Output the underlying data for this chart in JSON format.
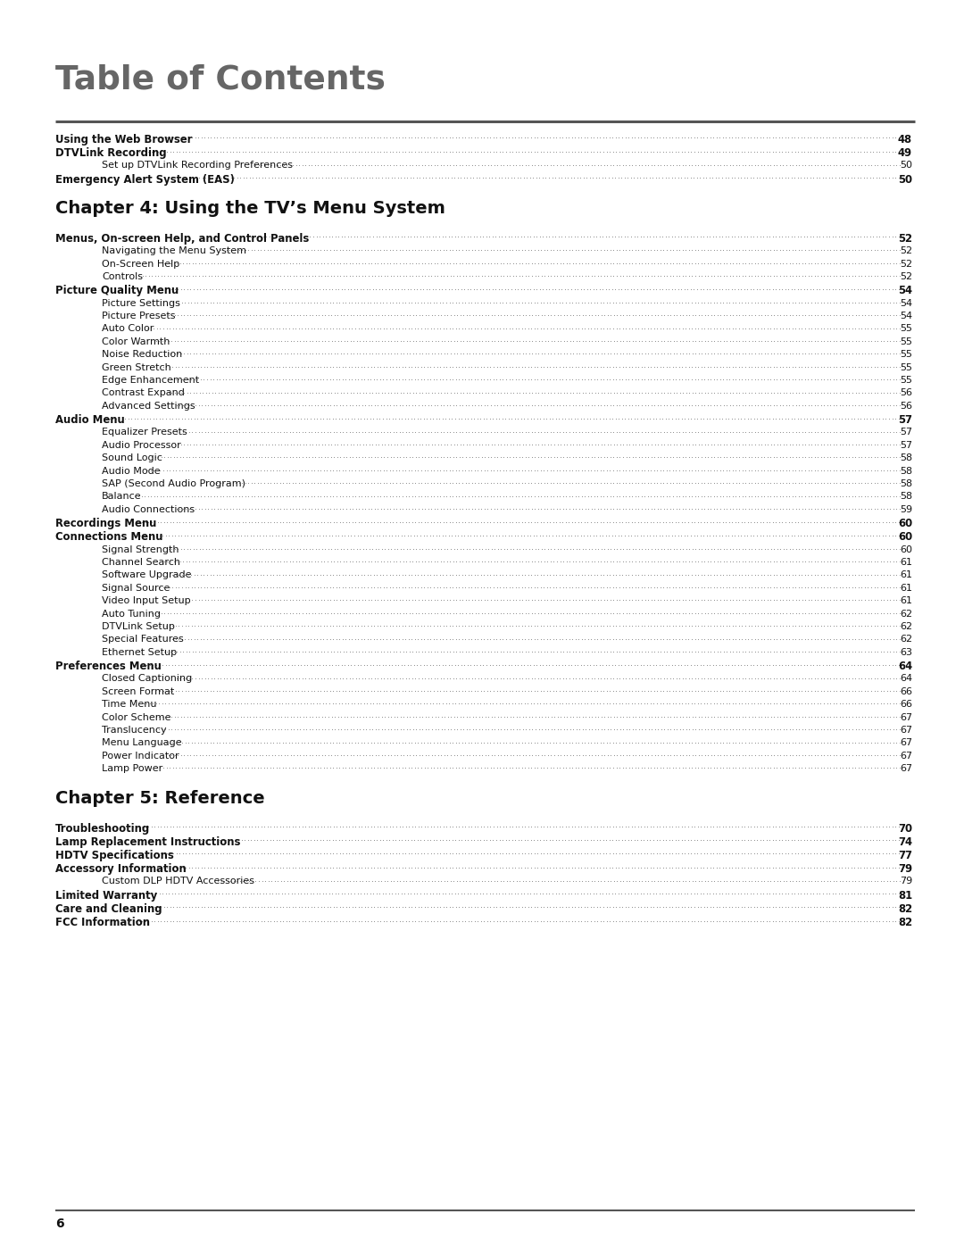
{
  "title": "Table of Contents",
  "background_color": "#ffffff",
  "footer_text": "6",
  "title_color": "#666666",
  "rule_color": "#555555",
  "text_color": "#111111",
  "chapter_color": "#111111",
  "entries": [
    {
      "text": "Using the Web Browser",
      "page": "48",
      "level": 1,
      "bold": true,
      "chapter": false
    },
    {
      "text": "DTVLink Recording",
      "page": "49",
      "level": 1,
      "bold": true,
      "chapter": false
    },
    {
      "text": "Set up DTVLink Recording Preferences",
      "page": "50",
      "level": 2,
      "bold": false,
      "chapter": false
    },
    {
      "text": "Emergency Alert System (EAS)",
      "page": "50",
      "level": 1,
      "bold": true,
      "chapter": false
    },
    {
      "text": "Chapter 4: Using the TV’s Menu System",
      "page": "",
      "level": 0,
      "bold": true,
      "chapter": true
    },
    {
      "text": "Menus, On-screen Help, and Control Panels",
      "page": "52",
      "level": 1,
      "bold": true,
      "chapter": false
    },
    {
      "text": "Navigating the Menu System",
      "page": "52",
      "level": 2,
      "bold": false,
      "chapter": false
    },
    {
      "text": "On-Screen Help",
      "page": "52",
      "level": 2,
      "bold": false,
      "chapter": false
    },
    {
      "text": "Controls",
      "page": "52",
      "level": 2,
      "bold": false,
      "chapter": false
    },
    {
      "text": "Picture Quality Menu",
      "page": "54",
      "level": 1,
      "bold": true,
      "chapter": false
    },
    {
      "text": "Picture Settings",
      "page": "54",
      "level": 2,
      "bold": false,
      "chapter": false
    },
    {
      "text": "Picture Presets",
      "page": "54",
      "level": 2,
      "bold": false,
      "chapter": false
    },
    {
      "text": "Auto Color",
      "page": "55",
      "level": 2,
      "bold": false,
      "chapter": false
    },
    {
      "text": "Color Warmth",
      "page": "55",
      "level": 2,
      "bold": false,
      "chapter": false
    },
    {
      "text": "Noise Reduction",
      "page": "55",
      "level": 2,
      "bold": false,
      "chapter": false
    },
    {
      "text": "Green Stretch",
      "page": "55",
      "level": 2,
      "bold": false,
      "chapter": false
    },
    {
      "text": "Edge Enhancement",
      "page": "55",
      "level": 2,
      "bold": false,
      "chapter": false
    },
    {
      "text": "Contrast Expand",
      "page": "56",
      "level": 2,
      "bold": false,
      "chapter": false
    },
    {
      "text": "Advanced Settings",
      "page": "56",
      "level": 2,
      "bold": false,
      "chapter": false
    },
    {
      "text": "Audio Menu",
      "page": "57",
      "level": 1,
      "bold": true,
      "chapter": false
    },
    {
      "text": "Equalizer Presets",
      "page": "57",
      "level": 2,
      "bold": false,
      "chapter": false
    },
    {
      "text": "Audio Processor",
      "page": "57",
      "level": 2,
      "bold": false,
      "chapter": false
    },
    {
      "text": "Sound Logic",
      "page": "58",
      "level": 2,
      "bold": false,
      "chapter": false
    },
    {
      "text": "Audio Mode",
      "page": "58",
      "level": 2,
      "bold": false,
      "chapter": false
    },
    {
      "text": "SAP (Second Audio Program)",
      "page": "58",
      "level": 2,
      "bold": false,
      "chapter": false
    },
    {
      "text": "Balance",
      "page": "58",
      "level": 2,
      "bold": false,
      "chapter": false
    },
    {
      "text": "Audio Connections",
      "page": "59",
      "level": 2,
      "bold": false,
      "chapter": false
    },
    {
      "text": "Recordings Menu",
      "page": "60",
      "level": 1,
      "bold": true,
      "chapter": false
    },
    {
      "text": "Connections Menu",
      "page": "60",
      "level": 1,
      "bold": true,
      "chapter": false
    },
    {
      "text": "Signal Strength",
      "page": "60",
      "level": 2,
      "bold": false,
      "chapter": false
    },
    {
      "text": "Channel Search",
      "page": "61",
      "level": 2,
      "bold": false,
      "chapter": false
    },
    {
      "text": "Software Upgrade",
      "page": "61",
      "level": 2,
      "bold": false,
      "chapter": false
    },
    {
      "text": "Signal Source",
      "page": "61",
      "level": 2,
      "bold": false,
      "chapter": false
    },
    {
      "text": "Video Input Setup",
      "page": "61",
      "level": 2,
      "bold": false,
      "chapter": false
    },
    {
      "text": "Auto Tuning",
      "page": "62",
      "level": 2,
      "bold": false,
      "chapter": false
    },
    {
      "text": "DTVLink Setup",
      "page": "62",
      "level": 2,
      "bold": false,
      "chapter": false
    },
    {
      "text": "Special Features",
      "page": "62",
      "level": 2,
      "bold": false,
      "chapter": false
    },
    {
      "text": "Ethernet Setup",
      "page": "63",
      "level": 2,
      "bold": false,
      "chapter": false
    },
    {
      "text": "Preferences Menu",
      "page": "64",
      "level": 1,
      "bold": true,
      "chapter": false
    },
    {
      "text": "Closed Captioning",
      "page": "64",
      "level": 2,
      "bold": false,
      "chapter": false
    },
    {
      "text": "Screen Format",
      "page": "66",
      "level": 2,
      "bold": false,
      "chapter": false
    },
    {
      "text": "Time Menu",
      "page": "66",
      "level": 2,
      "bold": false,
      "chapter": false
    },
    {
      "text": "Color Scheme",
      "page": "67",
      "level": 2,
      "bold": false,
      "chapter": false
    },
    {
      "text": "Translucency",
      "page": "67",
      "level": 2,
      "bold": false,
      "chapter": false
    },
    {
      "text": "Menu Language",
      "page": "67",
      "level": 2,
      "bold": false,
      "chapter": false
    },
    {
      "text": "Power Indicator",
      "page": "67",
      "level": 2,
      "bold": false,
      "chapter": false
    },
    {
      "text": "Lamp Power",
      "page": "67",
      "level": 2,
      "bold": false,
      "chapter": false
    },
    {
      "text": "Chapter 5: Reference",
      "page": "",
      "level": 0,
      "bold": true,
      "chapter": true
    },
    {
      "text": "Troubleshooting",
      "page": "70",
      "level": 1,
      "bold": true,
      "chapter": false
    },
    {
      "text": "Lamp Replacement Instructions",
      "page": "74",
      "level": 1,
      "bold": true,
      "chapter": false
    },
    {
      "text": "HDTV Specifications",
      "page": "77",
      "level": 1,
      "bold": true,
      "chapter": false
    },
    {
      "text": "Accessory Information",
      "page": "79",
      "level": 1,
      "bold": true,
      "chapter": false
    },
    {
      "text": "Custom DLP HDTV Accessories",
      "page": "79",
      "level": 2,
      "bold": false,
      "chapter": false
    },
    {
      "text": "Limited Warranty",
      "page": "81",
      "level": 1,
      "bold": true,
      "chapter": false
    },
    {
      "text": "Care and Cleaning",
      "page": "82",
      "level": 1,
      "bold": true,
      "chapter": false
    },
    {
      "text": "FCC Information",
      "page": "82",
      "level": 1,
      "bold": true,
      "chapter": false
    }
  ]
}
